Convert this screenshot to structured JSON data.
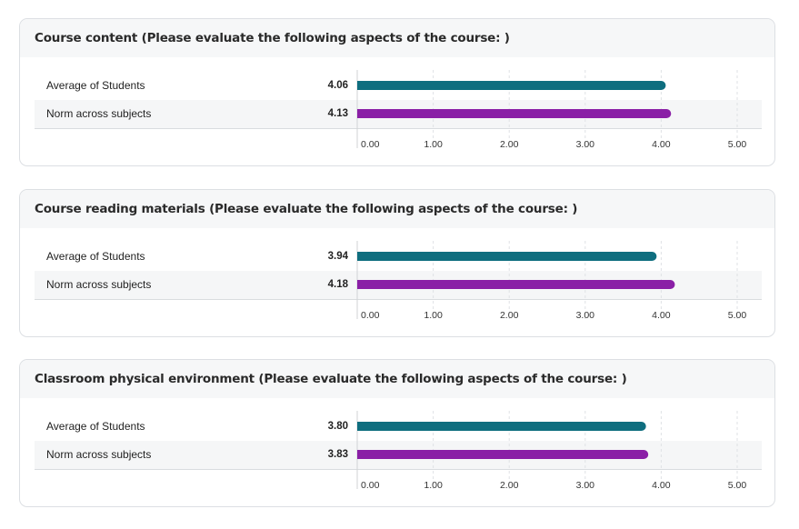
{
  "chart_data": [
    {
      "type": "bar",
      "title": "Course content (Please evaluate the following aspects of the course: )",
      "categories": [
        "Average of Students",
        "Norm across subjects"
      ],
      "values": [
        4.06,
        4.13
      ],
      "value_labels": [
        "4.06",
        "4.13"
      ],
      "colors": [
        "#0f6e7f",
        "#8a1fa6"
      ],
      "xlim": [
        0,
        5
      ],
      "ticks": [
        "0.00",
        "1.00",
        "2.00",
        "3.00",
        "4.00",
        "5.00"
      ],
      "orientation": "horizontal",
      "grid": true
    },
    {
      "type": "bar",
      "title": "Course reading materials (Please evaluate the following aspects of the course: )",
      "categories": [
        "Average of Students",
        "Norm across subjects"
      ],
      "values": [
        3.94,
        4.18
      ],
      "value_labels": [
        "3.94",
        "4.18"
      ],
      "colors": [
        "#0f6e7f",
        "#8a1fa6"
      ],
      "xlim": [
        0,
        5
      ],
      "ticks": [
        "0.00",
        "1.00",
        "2.00",
        "3.00",
        "4.00",
        "5.00"
      ],
      "orientation": "horizontal",
      "grid": true
    },
    {
      "type": "bar",
      "title": "Classroom physical environment (Please evaluate the following aspects of the course: )",
      "categories": [
        "Average of Students",
        "Norm across subjects"
      ],
      "values": [
        3.8,
        3.83
      ],
      "value_labels": [
        "3.80",
        "3.83"
      ],
      "colors": [
        "#0f6e7f",
        "#8a1fa6"
      ],
      "xlim": [
        0,
        5
      ],
      "ticks": [
        "0.00",
        "1.00",
        "2.00",
        "3.00",
        "4.00",
        "5.00"
      ],
      "orientation": "horizontal",
      "grid": true
    }
  ]
}
